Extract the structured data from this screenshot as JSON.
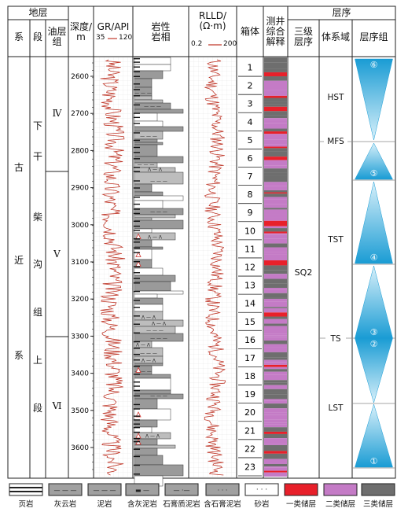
{
  "header": {
    "strata_group": "地层",
    "col_system": "系",
    "col_series": "段",
    "col_oil_group": "油层\n组",
    "col_depth": "深度/\nm",
    "col_gr": "GR/API",
    "gr_min": "35",
    "gr_max": "120",
    "col_lithofacies": "岩性\n岩相",
    "col_rlld": "RLLD/\n(Ω·m)",
    "rlld_min": "0.2",
    "rlld_max": "200",
    "col_box": "箱体",
    "col_log_interp": "测井\n综合\n解释",
    "sequence_group": "层序",
    "col_third_order": "三级\n层序",
    "col_system_tract": "体系域",
    "col_parasequence_set": "层序组"
  },
  "strata": {
    "system": [
      "古",
      "近",
      "系"
    ],
    "series": [
      "下",
      "干",
      "柴",
      "沟",
      "组",
      "上",
      "段"
    ],
    "oil_groups": [
      "Ⅳ",
      "Ⅴ",
      "Ⅵ"
    ]
  },
  "depth_ticks": [
    "2600",
    "2700",
    "2800",
    "2900",
    "3000",
    "3100",
    "3200",
    "3300",
    "3400",
    "3500",
    "3600"
  ],
  "boxes": [
    "1",
    "2",
    "3",
    "4",
    "5",
    "6",
    "7",
    "8",
    "9",
    "10",
    "11",
    "12",
    "13",
    "14",
    "15",
    "16",
    "17",
    "18",
    "19",
    "20",
    "21",
    "22",
    "23"
  ],
  "sequence": {
    "third_order": "SQ2",
    "tracts": [
      "HST",
      "MFS",
      "TST",
      "TS",
      "LST"
    ],
    "parasequence_sets": [
      "⑥",
      "⑤",
      "④",
      "③",
      "②",
      "①"
    ]
  },
  "colors": {
    "curve": "#c0392b",
    "class1": "#e8202a",
    "class2": "#c47bc6",
    "class3": "#6e6e6e",
    "triangle_top": "#6fc6e8",
    "triangle_bottom": "#1a9cd4",
    "lith_gray": "#9a9a9a"
  },
  "legend": [
    {
      "label": "页岩",
      "icon": "shale-pattern"
    },
    {
      "label": "灰云岩",
      "icon": "dolomitic-limestone-pattern"
    },
    {
      "label": "泥岩",
      "icon": "mudstone-pattern"
    },
    {
      "label": "含灰泥岩",
      "icon": "calcareous-mudstone-pattern"
    },
    {
      "label": "石膏质泥岩",
      "icon": "gypsiferous-mudstone-pattern"
    },
    {
      "label": "含石膏泥岩",
      "icon": "gypsum-bearing-mudstone-pattern"
    },
    {
      "label": "砂岩",
      "icon": "sandstone-pattern"
    },
    {
      "label": "一类储层",
      "icon": "class1-reservoir-swatch"
    },
    {
      "label": "二类储层",
      "icon": "class2-reservoir-swatch"
    },
    {
      "label": "三类储层",
      "icon": "class3-reservoir-swatch"
    }
  ]
}
